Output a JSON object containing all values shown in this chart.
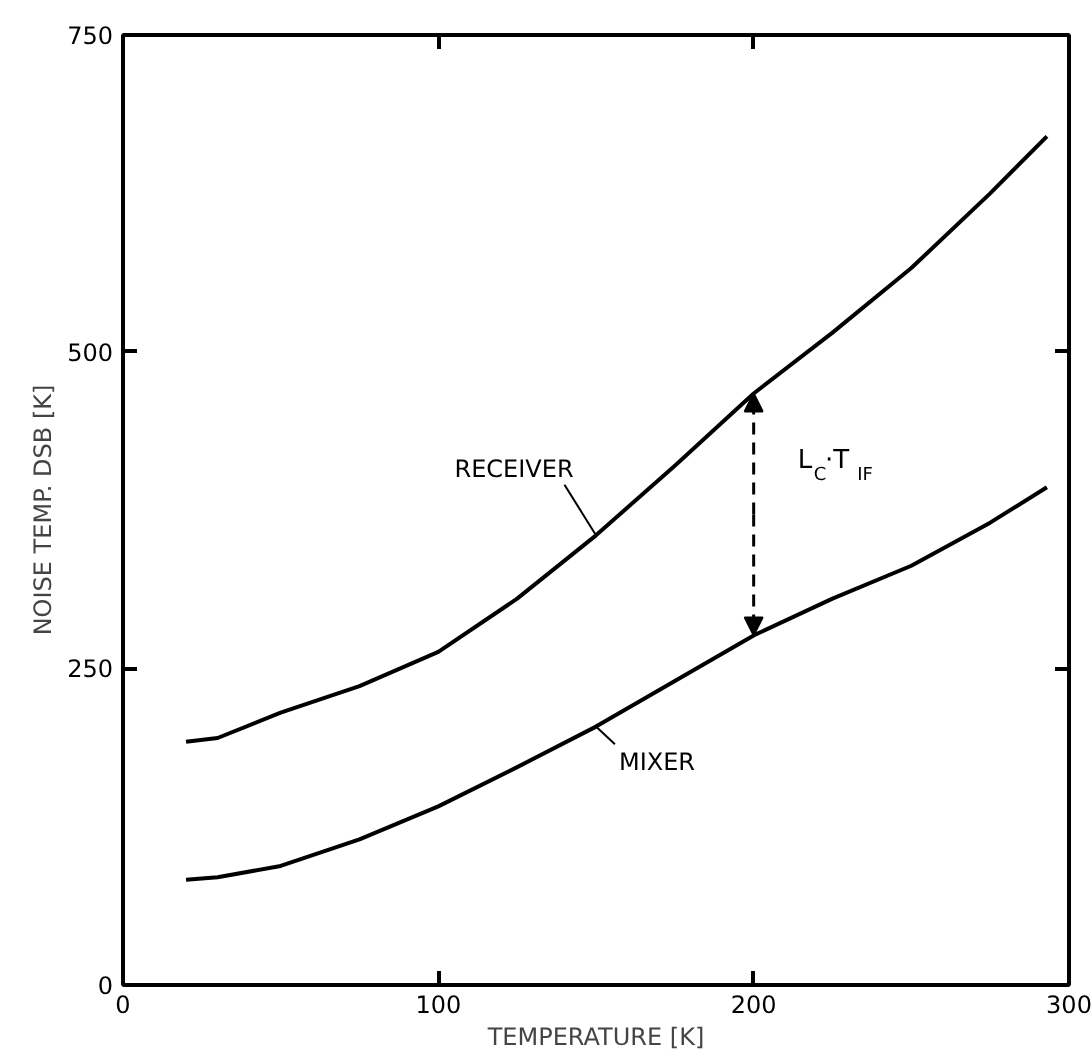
{
  "chart_data": {
    "type": "line",
    "xlabel": "TEMPERATURE [K]",
    "ylabel": "NOISE TEMP. DSB [K]",
    "x": [
      20,
      30,
      50,
      75,
      100,
      125,
      150,
      175,
      200,
      225,
      250,
      275,
      293
    ],
    "series": [
      {
        "name": "RECEIVER",
        "color": "#000000",
        "values": [
          192,
          195,
          215,
          236,
          263,
          305,
          355,
          410,
          467,
          515,
          566,
          625,
          670
        ]
      },
      {
        "name": "MIXER",
        "color": "#000000",
        "values": [
          83,
          85,
          94,
          115,
          141,
          172,
          204,
          240,
          276,
          305,
          331,
          365,
          393
        ]
      }
    ],
    "annotations": [
      "L$_{C}$·T$_{IF}$"
    ],
    "xlim": [
      0,
      300
    ],
    "ylim": [
      0,
      750
    ],
    "xticks": [
      0,
      100,
      200,
      300
    ],
    "yticks": [
      0,
      250,
      500,
      750
    ],
    "grid": false,
    "marker": "none",
    "line_style": "solid"
  }
}
